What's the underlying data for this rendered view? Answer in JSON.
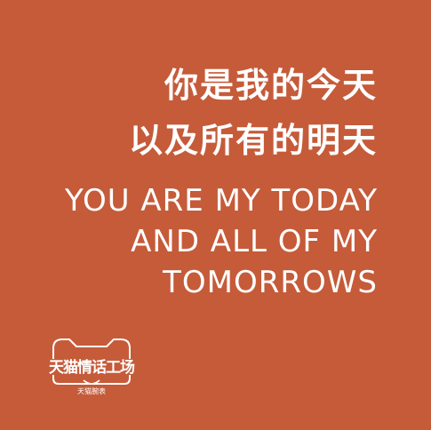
{
  "colors": {
    "background": "#c55b39",
    "text": "#ffffff"
  },
  "headline_zh": {
    "line1": "你是我的今天",
    "line2": "以及所有的明天"
  },
  "headline_en": {
    "line1": "YOU ARE MY TODAY",
    "line2": "AND ALL OF MY",
    "line3": "TOMORROWS"
  },
  "brand": {
    "icon": "tmall-cat-head-icon",
    "name": "天猫情话工场",
    "subtitle": "天猫腕表"
  }
}
